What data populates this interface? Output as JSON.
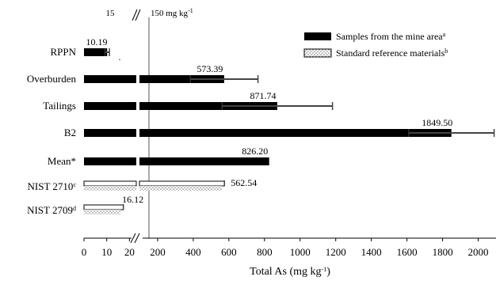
{
  "chart_data": {
    "type": "bar",
    "orientation": "horizontal",
    "categories": [
      {
        "label": "RPPN",
        "sup": ""
      },
      {
        "label": "Overburden",
        "sup": ""
      },
      {
        "label": "Tailings",
        "sup": ""
      },
      {
        "label": "B2",
        "sup": ""
      },
      {
        "label": "Mean*",
        "sup": ""
      },
      {
        "label": "NIST 2710",
        "sup": "c"
      },
      {
        "label": "NIST 2709",
        "sup": "d"
      }
    ],
    "series": [
      {
        "name": "Samples from the mine area",
        "name_sup": "a",
        "fill": "#000000",
        "values": [
          10.19,
          573.39,
          871.74,
          1849.5,
          826.2,
          null,
          null
        ],
        "error": [
          1.0,
          190,
          310,
          240,
          null,
          null,
          null
        ]
      },
      {
        "name": "Standard reference materials",
        "name_sup": "b",
        "fill": "dotted",
        "values": [
          null,
          null,
          null,
          null,
          null,
          562.54,
          16.12
        ]
      },
      {
        "name": "",
        "fill": "#ffffff",
        "values": [
          null,
          null,
          null,
          null,
          null,
          575,
          17.3
        ],
        "error": [
          null,
          null,
          null,
          null,
          null,
          8,
          0.4
        ]
      }
    ],
    "data_labels": [
      "10.19",
      "573.39",
      "871.74",
      "1849.50",
      "826.20",
      "562.54",
      "16.12"
    ],
    "asterisk_note": ".",
    "x_axis": {
      "title": "Total As (mg kg",
      "title_sup": "-1",
      "title_end": ")",
      "segments": [
        {
          "range": [
            0,
            15
          ],
          "ticks": [
            0,
            10,
            20
          ]
        },
        {
          "range": [
            150,
            2100
          ],
          "ticks": [
            200,
            400,
            600,
            800,
            1000,
            1200,
            1400,
            1600,
            1800,
            2000
          ]
        }
      ],
      "tick_labels": [
        "0",
        "10",
        "20",
        "200",
        "400",
        "600",
        "800",
        "1000",
        "1200",
        "1400",
        "1600",
        "1800",
        "2000"
      ],
      "break_labels": {
        "left": "15",
        "right": "150 mg kg",
        "right_sup": "-1"
      },
      "reference_line": 150
    },
    "legend": {
      "position": "top-right"
    },
    "grid": false
  }
}
